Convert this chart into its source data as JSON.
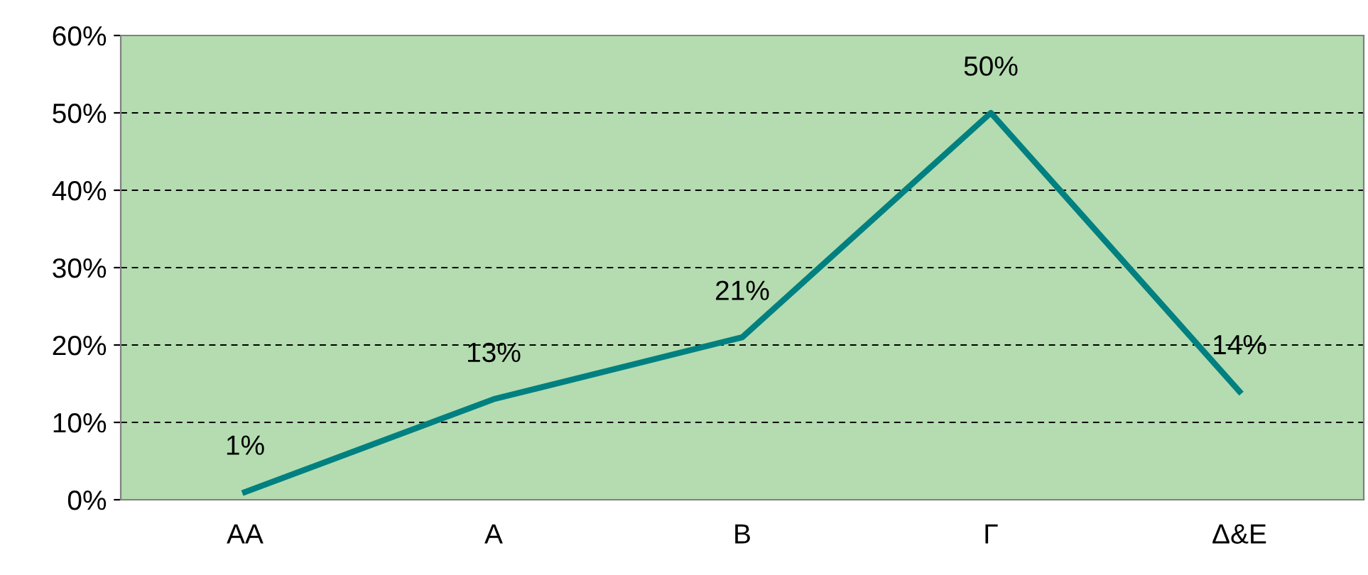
{
  "chart_data": {
    "type": "line",
    "categories": [
      "ΑΑ",
      "Α",
      "Β",
      "Γ",
      "Δ&Ε"
    ],
    "series": [
      {
        "color": "#008080",
        "values": [
          1,
          13,
          21,
          50,
          14
        ],
        "value_labels": [
          "1%",
          "13%",
          "21%",
          "50%",
          "14%"
        ]
      }
    ],
    "ylim": [
      0,
      60
    ],
    "yticks": [
      {
        "value": 0,
        "label": "0%"
      },
      {
        "value": 10,
        "label": "10%"
      },
      {
        "value": 20,
        "label": "20%"
      },
      {
        "value": 30,
        "label": "30%"
      },
      {
        "value": 40,
        "label": "40%"
      },
      {
        "value": 50,
        "label": "50%"
      },
      {
        "value": 60,
        "label": "60%"
      }
    ],
    "grid": "y",
    "line_style": "solid",
    "marker": "none"
  }
}
